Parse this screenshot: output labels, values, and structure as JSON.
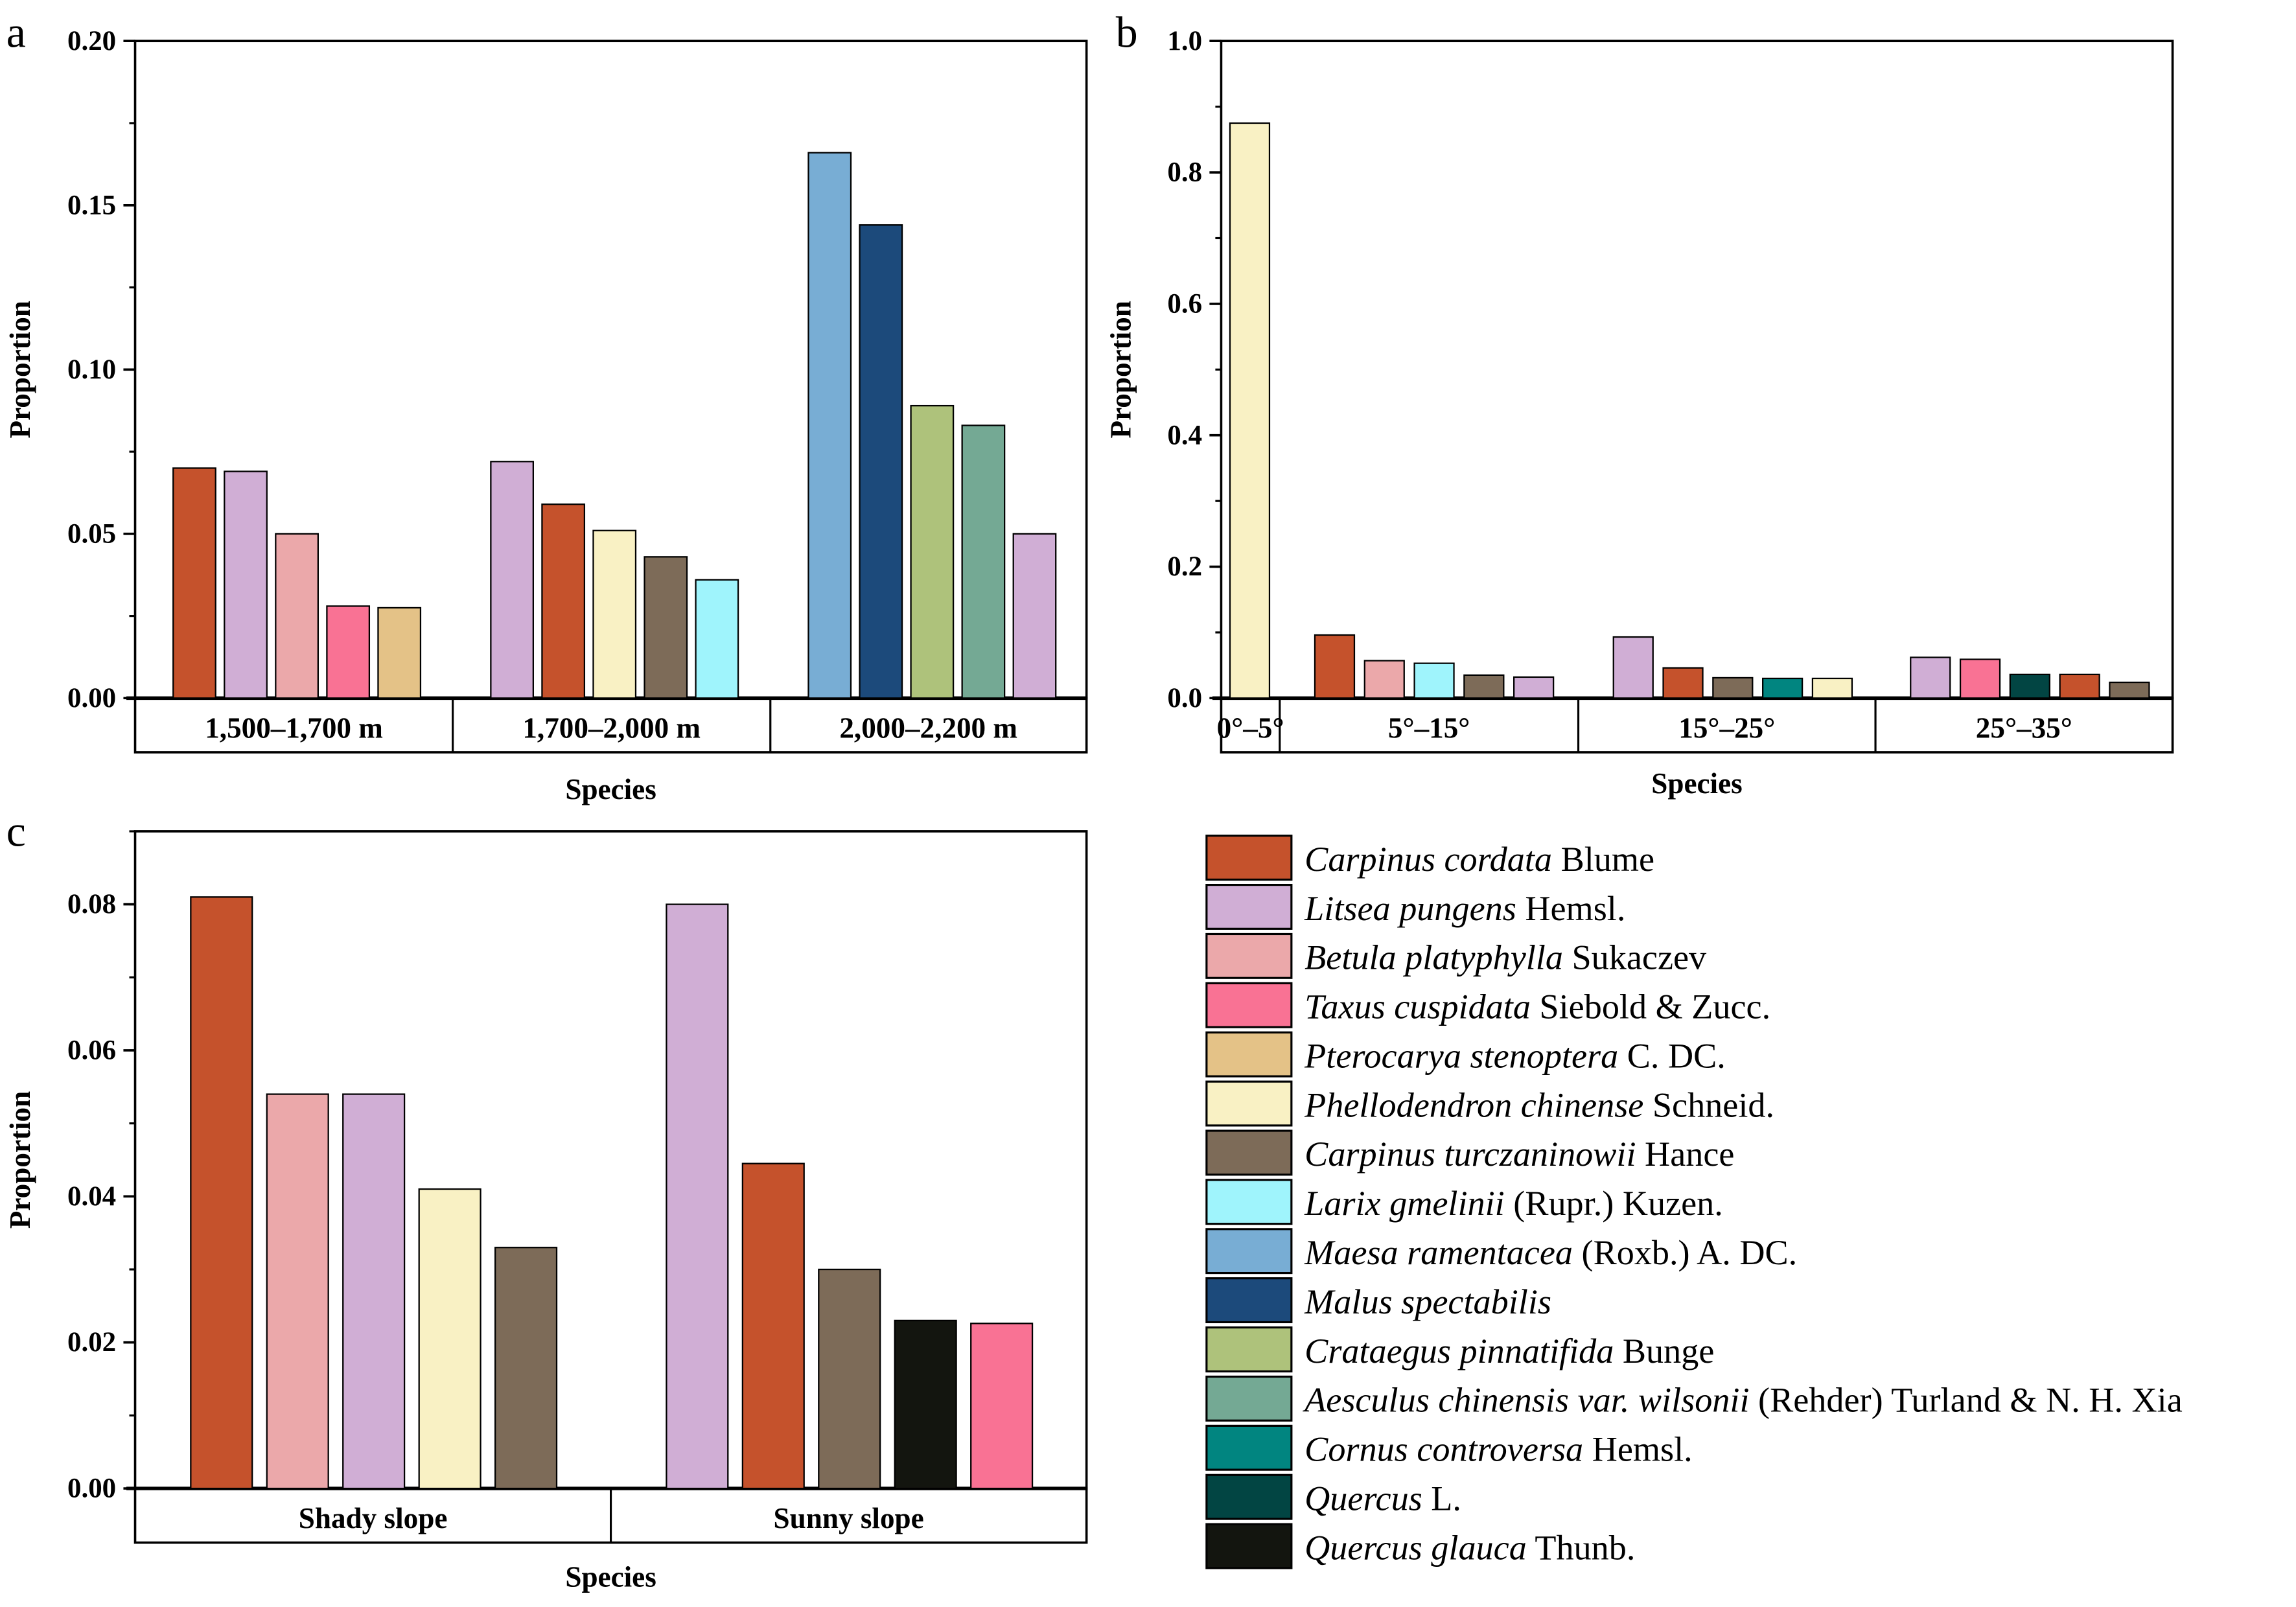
{
  "legend": [
    {
      "italic": "Carpinus cordata",
      "author": " Blume",
      "color": "#C5522C"
    },
    {
      "italic": "Litsea pungens",
      "author": " Hemsl.",
      "color": "#D0AED5"
    },
    {
      "italic": "Betula platyphylla",
      "author": " Sukaczev",
      "color": "#EBA8AA"
    },
    {
      "italic": "Taxus cuspidata",
      "author": " Siebold & Zucc.",
      "color": "#F97294"
    },
    {
      "italic": "Pterocarya stenoptera",
      "author": " C. DC.",
      "color": "#E4C287"
    },
    {
      "italic": "Phellodendron chinense",
      "author": " Schneid.",
      "color": "#F9F1C4"
    },
    {
      "italic": "Carpinus turczaninowii",
      "author": " Hance",
      "color": "#7D6B58"
    },
    {
      "italic": "Larix gmelinii",
      "author": " (Rupr.) Kuzen.",
      "color": "#9FF4FC"
    },
    {
      "italic": "Maesa ramentacea",
      "author": " (Roxb.) A. DC.",
      "color": "#78ADD4"
    },
    {
      "italic": "Malus spectabilis",
      "author": "",
      "color": "#1C4A7B"
    },
    {
      "italic": "Crataegus pinnatifida",
      "author": " Bunge",
      "color": "#AEC27B"
    },
    {
      "italic": "Aesculus chinensis var. wilsonii",
      "author": " (Rehder) Turland & N. H. Xia",
      "color": "#74A994"
    },
    {
      "italic": "Cornus controversa",
      "author": " Hemsl.",
      "color": "#018580"
    },
    {
      "italic": "Quercus",
      "author": " L.",
      "color": "#024543"
    },
    {
      "italic": "Quercus glauca",
      "author": " Thunb.",
      "color": "#13150F"
    }
  ],
  "chart_data": [
    {
      "panel": "a",
      "type": "bar",
      "title": "",
      "xlabel": "Species",
      "ylabel": "Proportion",
      "ylim": [
        0,
        0.2
      ],
      "yticks": [
        "0.00",
        "0.05",
        "0.10",
        "0.15",
        "0.20"
      ],
      "ytick_values": [
        0,
        0.05,
        0.1,
        0.15,
        0.2
      ],
      "minor_step": 0.025,
      "groups": [
        {
          "label": "1,500–1,700 m",
          "bars": [
            {
              "species": "Carpinus cordata",
              "value": 0.07
            },
            {
              "species": "Litsea pungens",
              "value": 0.069
            },
            {
              "species": "Betula platyphylla",
              "value": 0.05
            },
            {
              "species": "Taxus cuspidata",
              "value": 0.028
            },
            {
              "species": "Pterocarya stenoptera",
              "value": 0.0275
            }
          ]
        },
        {
          "label": "1,700–2,000 m",
          "bars": [
            {
              "species": "Litsea pungens",
              "value": 0.072
            },
            {
              "species": "Carpinus cordata",
              "value": 0.059
            },
            {
              "species": "Phellodendron chinense",
              "value": 0.051
            },
            {
              "species": "Carpinus turczaninowii",
              "value": 0.043
            },
            {
              "species": "Larix gmelinii",
              "value": 0.036
            }
          ]
        },
        {
          "label": "2,000–2,200 m",
          "bars": [
            {
              "species": "Maesa ramentacea",
              "value": 0.166
            },
            {
              "species": "Malus spectabilis",
              "value": 0.144
            },
            {
              "species": "Crataegus pinnatifida",
              "value": 0.089
            },
            {
              "species": "Aesculus chinensis var. wilsonii",
              "value": 0.083
            },
            {
              "species": "Litsea pungens",
              "value": 0.05
            }
          ]
        }
      ]
    },
    {
      "panel": "b",
      "type": "bar",
      "title": "",
      "xlabel": "Species",
      "ylabel": "Proportion",
      "ylim": [
        0,
        1.0
      ],
      "yticks": [
        "0.0",
        "0.2",
        "0.4",
        "0.6",
        "0.8",
        "1.0"
      ],
      "ytick_values": [
        0,
        0.2,
        0.4,
        0.6,
        0.8,
        1.0
      ],
      "minor_step": 0.1,
      "groups": [
        {
          "label": "0°–5°",
          "bars": [
            {
              "species": "Phellodendron chinense",
              "value": 0.875
            }
          ]
        },
        {
          "label": "5°–15°",
          "bars": [
            {
              "species": "Carpinus cordata",
              "value": 0.096
            },
            {
              "species": "Betula platyphylla",
              "value": 0.057
            },
            {
              "species": "Larix gmelinii",
              "value": 0.053
            },
            {
              "species": "Carpinus turczaninowii",
              "value": 0.035
            },
            {
              "species": "Litsea pungens",
              "value": 0.032
            }
          ]
        },
        {
          "label": "15°–25°",
          "bars": [
            {
              "species": "Litsea pungens",
              "value": 0.093
            },
            {
              "species": "Carpinus cordata",
              "value": 0.046
            },
            {
              "species": "Carpinus turczaninowii",
              "value": 0.031
            },
            {
              "species": "Cornus controversa",
              "value": 0.03
            },
            {
              "species": "Phellodendron chinense",
              "value": 0.03
            }
          ]
        },
        {
          "label": "25°–35°",
          "bars": [
            {
              "species": "Litsea pungens",
              "value": 0.062
            },
            {
              "species": "Taxus cuspidata",
              "value": 0.059
            },
            {
              "species": "Quercus",
              "value": 0.036
            },
            {
              "species": "Carpinus cordata",
              "value": 0.036
            },
            {
              "species": "Carpinus turczaninowii",
              "value": 0.024
            }
          ]
        }
      ]
    },
    {
      "panel": "c",
      "type": "bar",
      "title": "",
      "xlabel": "Species",
      "ylabel": "Proportion",
      "ylim": [
        0,
        0.09
      ],
      "yticks": [
        "0.00",
        "0.02",
        "0.04",
        "0.06",
        "0.08"
      ],
      "ytick_values": [
        0,
        0.02,
        0.04,
        0.06,
        0.08
      ],
      "minor_step": 0.01,
      "groups": [
        {
          "label": "Shady slope",
          "bars": [
            {
              "species": "Carpinus cordata",
              "value": 0.081
            },
            {
              "species": "Betula platyphylla",
              "value": 0.054
            },
            {
              "species": "Litsea pungens",
              "value": 0.054
            },
            {
              "species": "Phellodendron chinense",
              "value": 0.041
            },
            {
              "species": "Carpinus turczaninowii",
              "value": 0.033
            }
          ]
        },
        {
          "label": "Sunny slope",
          "bars": [
            {
              "species": "Litsea pungens",
              "value": 0.08
            },
            {
              "species": "Carpinus cordata",
              "value": 0.0445
            },
            {
              "species": "Carpinus turczaninowii",
              "value": 0.03
            },
            {
              "species": "Quercus glauca",
              "value": 0.023
            },
            {
              "species": "Taxus cuspidata",
              "value": 0.0226
            }
          ]
        }
      ]
    }
  ]
}
